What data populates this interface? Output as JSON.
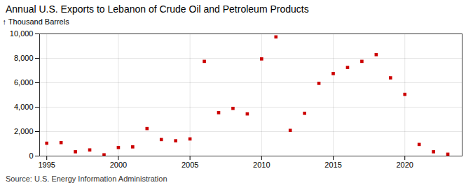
{
  "chart_data": {
    "type": "scatter",
    "title": "Annual U.S. Exports to Lebanon of Crude Oil and Petroleum Products",
    "ylabel": "Thousand Barrels",
    "caption": "Source: U.S. Energy Information Administration",
    "x": [
      1995,
      1996,
      1997,
      1998,
      1999,
      2000,
      2001,
      2002,
      2003,
      2004,
      2005,
      2006,
      2007,
      2008,
      2009,
      2010,
      2011,
      2012,
      2013,
      2014,
      2015,
      2016,
      2017,
      2018,
      2019,
      2020,
      2021,
      2022,
      2023
    ],
    "values": [
      1050,
      1100,
      350,
      500,
      100,
      700,
      750,
      2250,
      1350,
      1250,
      1400,
      7750,
      3550,
      3900,
      3450,
      7950,
      9750,
      2100,
      3500,
      5950,
      6750,
      7250,
      7750,
      8300,
      6400,
      5050,
      950,
      350,
      150
    ],
    "color": "#cc0000",
    "marker": "square",
    "xlim": [
      1994.5,
      2024
    ],
    "xticks": [
      1995,
      2000,
      2005,
      2010,
      2015,
      2020
    ],
    "ylim": [
      0,
      10000
    ],
    "yticks": [
      0,
      {
        "value": 2000,
        "label": "2,000"
      },
      {
        "value": 4000,
        "label": "4,000"
      },
      {
        "value": 6000,
        "label": "6,000"
      },
      {
        "value": 8000,
        "label": "8,000"
      },
      {
        "value": 10000,
        "label": "10,000"
      }
    ],
    "grid": true
  }
}
